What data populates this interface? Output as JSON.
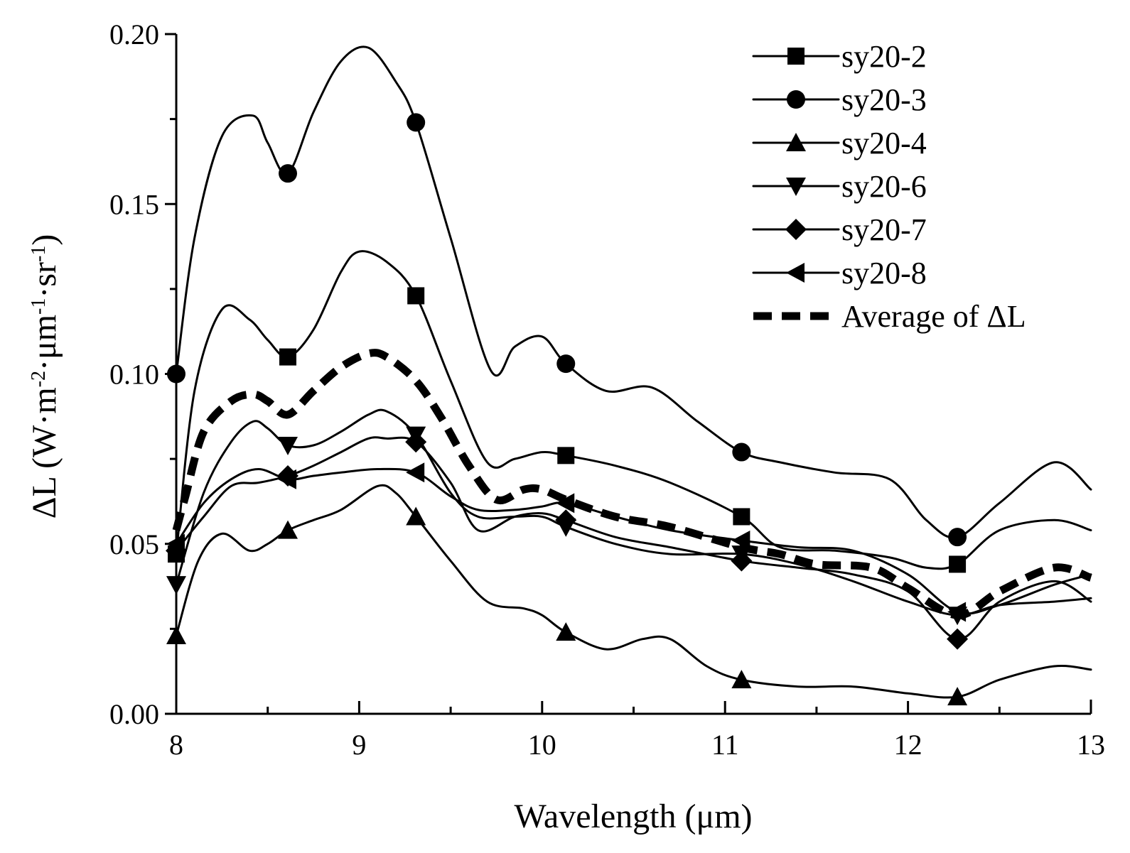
{
  "chart_data": {
    "type": "line",
    "title": "",
    "xlabel": "Wavelength (μm)",
    "ylabel_parts": [
      "ΔL (W·m",
      "-2",
      "·μm",
      "-1",
      "·sr",
      "-1",
      ")"
    ],
    "xlim": [
      8,
      13
    ],
    "ylim": [
      0,
      0.2
    ],
    "xticks": [
      8,
      9,
      10,
      11,
      12,
      13
    ],
    "xtick_labels": [
      "8",
      "9",
      "10",
      "11",
      "12",
      "13"
    ],
    "yticks": [
      0,
      0.05,
      0.1,
      0.15,
      0.2
    ],
    "ytick_labels": [
      "0.00",
      "0.05",
      "0.10",
      "0.15",
      "0.20"
    ],
    "grid": false,
    "legend_position": "top-right",
    "marker_x": [
      8.0,
      8.61,
      9.31,
      10.13,
      11.09,
      12.27
    ],
    "series": [
      {
        "name": "sy20-2",
        "marker": "square",
        "style": "solid",
        "x": [
          8.0,
          8.1,
          8.25,
          8.4,
          8.5,
          8.61,
          8.75,
          8.9,
          9.0,
          9.15,
          9.31,
          9.5,
          9.7,
          9.85,
          10.0,
          10.13,
          10.4,
          10.7,
          11.09,
          11.3,
          11.6,
          11.9,
          12.1,
          12.27,
          12.5,
          12.8,
          13.0
        ],
        "y": [
          0.047,
          0.095,
          0.119,
          0.116,
          0.11,
          0.105,
          0.113,
          0.13,
          0.136,
          0.133,
          0.123,
          0.098,
          0.074,
          0.075,
          0.077,
          0.076,
          0.073,
          0.068,
          0.058,
          0.049,
          0.048,
          0.046,
          0.043,
          0.044,
          0.054,
          0.057,
          0.054
        ]
      },
      {
        "name": "sy20-3",
        "marker": "circle",
        "style": "solid",
        "x": [
          8.0,
          8.1,
          8.25,
          8.42,
          8.5,
          8.61,
          8.75,
          8.9,
          9.05,
          9.2,
          9.31,
          9.5,
          9.72,
          9.85,
          10.0,
          10.13,
          10.35,
          10.6,
          10.85,
          11.09,
          11.3,
          11.6,
          11.9,
          12.1,
          12.27,
          12.5,
          12.8,
          13.0
        ],
        "y": [
          0.1,
          0.14,
          0.17,
          0.176,
          0.168,
          0.159,
          0.177,
          0.192,
          0.196,
          0.186,
          0.174,
          0.14,
          0.101,
          0.108,
          0.111,
          0.103,
          0.095,
          0.096,
          0.086,
          0.077,
          0.074,
          0.071,
          0.069,
          0.057,
          0.052,
          0.062,
          0.074,
          0.066
        ]
      },
      {
        "name": "sy20-4",
        "marker": "triangle-up",
        "style": "solid",
        "x": [
          8.0,
          8.12,
          8.25,
          8.4,
          8.5,
          8.61,
          8.75,
          8.9,
          9.1,
          9.2,
          9.31,
          9.5,
          9.7,
          9.9,
          10.0,
          10.13,
          10.35,
          10.55,
          10.7,
          10.9,
          11.09,
          11.4,
          11.7,
          12.0,
          12.27,
          12.5,
          12.8,
          13.0
        ],
        "y": [
          0.023,
          0.045,
          0.053,
          0.048,
          0.05,
          0.054,
          0.057,
          0.06,
          0.067,
          0.065,
          0.058,
          0.045,
          0.033,
          0.031,
          0.029,
          0.024,
          0.019,
          0.022,
          0.022,
          0.014,
          0.01,
          0.008,
          0.008,
          0.006,
          0.005,
          0.01,
          0.014,
          0.013
        ]
      },
      {
        "name": "sy20-6",
        "marker": "triangle-down",
        "style": "solid",
        "x": [
          8.0,
          8.15,
          8.3,
          8.42,
          8.5,
          8.61,
          8.75,
          8.9,
          9.05,
          9.15,
          9.31,
          9.5,
          9.65,
          9.85,
          10.0,
          10.13,
          10.4,
          10.7,
          11.09,
          11.4,
          11.7,
          12.0,
          12.27,
          12.5,
          12.8,
          13.0
        ],
        "y": [
          0.038,
          0.065,
          0.08,
          0.086,
          0.084,
          0.079,
          0.079,
          0.083,
          0.088,
          0.089,
          0.082,
          0.065,
          0.058,
          0.058,
          0.058,
          0.055,
          0.05,
          0.047,
          0.047,
          0.044,
          0.039,
          0.033,
          0.029,
          0.032,
          0.033,
          0.034
        ]
      },
      {
        "name": "sy20-7",
        "marker": "diamond",
        "style": "solid",
        "x": [
          8.0,
          8.15,
          8.3,
          8.45,
          8.61,
          8.75,
          8.9,
          9.05,
          9.15,
          9.31,
          9.5,
          9.65,
          9.85,
          10.0,
          10.13,
          10.4,
          10.7,
          11.09,
          11.4,
          11.7,
          12.0,
          12.27,
          12.5,
          12.8,
          13.0
        ],
        "y": [
          0.048,
          0.058,
          0.067,
          0.068,
          0.07,
          0.073,
          0.077,
          0.081,
          0.081,
          0.08,
          0.068,
          0.054,
          0.058,
          0.059,
          0.057,
          0.052,
          0.049,
          0.045,
          0.043,
          0.041,
          0.036,
          0.022,
          0.033,
          0.039,
          0.033
        ]
      },
      {
        "name": "sy20-8",
        "marker": "triangle-left",
        "style": "solid",
        "x": [
          8.0,
          8.15,
          8.3,
          8.45,
          8.61,
          8.75,
          8.9,
          9.1,
          9.31,
          9.5,
          9.65,
          9.85,
          10.0,
          10.13,
          10.4,
          10.7,
          11.09,
          11.4,
          11.7,
          12.0,
          12.27,
          12.5,
          12.8,
          13.0
        ],
        "y": [
          0.05,
          0.062,
          0.069,
          0.072,
          0.069,
          0.07,
          0.071,
          0.072,
          0.071,
          0.064,
          0.06,
          0.06,
          0.061,
          0.062,
          0.058,
          0.054,
          0.051,
          0.049,
          0.048,
          0.041,
          0.03,
          0.032,
          0.038,
          0.041
        ]
      },
      {
        "name": "Average of ΔL",
        "marker": "none",
        "style": "dashed",
        "x": [
          8.0,
          8.05,
          8.15,
          8.3,
          8.42,
          8.5,
          8.61,
          8.75,
          8.9,
          9.05,
          9.15,
          9.31,
          9.45,
          9.6,
          9.75,
          9.9,
          10.0,
          10.13,
          10.4,
          10.7,
          11.09,
          11.3,
          11.5,
          11.8,
          12.0,
          12.27,
          12.5,
          12.8,
          13.0
        ],
        "y": [
          0.054,
          0.064,
          0.083,
          0.092,
          0.094,
          0.092,
          0.088,
          0.095,
          0.102,
          0.106,
          0.105,
          0.098,
          0.087,
          0.073,
          0.063,
          0.066,
          0.066,
          0.063,
          0.058,
          0.055,
          0.049,
          0.047,
          0.044,
          0.043,
          0.037,
          0.029,
          0.036,
          0.043,
          0.04
        ]
      }
    ]
  }
}
